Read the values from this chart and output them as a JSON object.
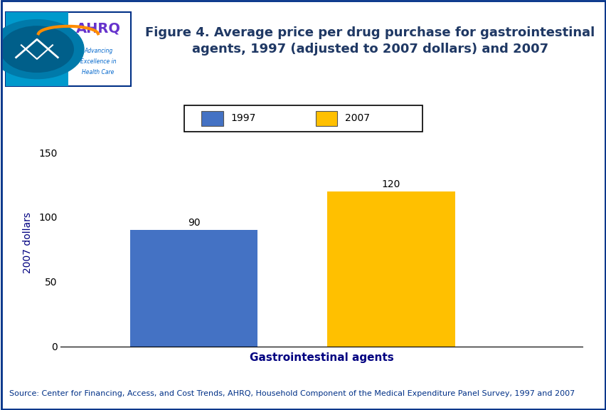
{
  "title_line1": "Figure 4. Average price per drug purchase for gastrointestinal",
  "title_line2": "agents, 1997 (adjusted to 2007 dollars) and 2007",
  "xlabel": "Gastrointestinal agents",
  "ylabel": "2007 dollars",
  "values": [
    90,
    120
  ],
  "bar_colors": [
    "#4472C4",
    "#FFC000"
  ],
  "bar_labels": [
    "90",
    "120"
  ],
  "ylim": [
    0,
    160
  ],
  "yticks": [
    0,
    50,
    100,
    150
  ],
  "legend_labels": [
    "1997",
    "2007"
  ],
  "source_text": "Source: Center for Financing, Access, and Cost Trends, AHRQ, Household Component of the Medical Expenditure Panel Survey, 1997 and 2007",
  "title_color": "#1F3864",
  "accent_line_color": "#003087",
  "bar_label_color": "#000000",
  "ylabel_color": "#000080",
  "xlabel_color": "#000080",
  "ytick_color": "#000000",
  "source_color": "#003087",
  "background_color": "#FFFFFF",
  "logo_bg_color": "#0099CC",
  "logo_box_color": "#FFFFFF",
  "ahrq_text_color": "#6633CC",
  "ahrq_sub_color": "#0066CC",
  "bar_positions": [
    0.28,
    0.62
  ],
  "bar_width": 0.22,
  "title_fontsize": 13,
  "ylabel_fontsize": 10,
  "xlabel_fontsize": 11,
  "label_fontsize": 10,
  "source_fontsize": 8,
  "ytick_fontsize": 10,
  "legend_fontsize": 10
}
